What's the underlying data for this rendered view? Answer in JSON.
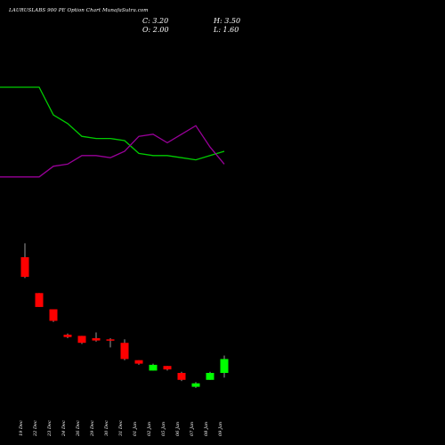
{
  "chart_data": {
    "type": "candlestick",
    "title": "LAURUSLABS 900 PE Option Chart MunafaSutra.com",
    "ohlc_summary": {
      "C": "3.20",
      "O": "2.00",
      "H": "3.50",
      "L": "1.60"
    },
    "header_text": {
      "c": "C: 3.20",
      "o": "O: 2.00",
      "h": "H: 3.50",
      "l": "L: 1.60"
    },
    "categories": [
      "19 Dec",
      "22 Dec",
      "23 Dec",
      "24 Dec",
      "26 Dec",
      "29 Dec",
      "30 Dec",
      "31 Dec",
      "01 Jan",
      "02 Jan",
      "05 Jan",
      "06 Jan",
      "07 Jan",
      "08 Jan",
      "09 Jan"
    ],
    "candles": [
      {
        "x": "19 Dec",
        "open": 12.0,
        "high": 13.2,
        "low": 10.2,
        "close": 10.3
      },
      {
        "x": "22 Dec",
        "open": 8.9,
        "high": 8.9,
        "low": 7.7,
        "close": 7.7
      },
      {
        "x": "23 Dec",
        "open": 7.5,
        "high": 7.5,
        "low": 6.4,
        "close": 6.5
      },
      {
        "x": "24 Dec",
        "open": 5.3,
        "high": 5.4,
        "low": 5.0,
        "close": 5.1
      },
      {
        "x": "26 Dec",
        "open": 5.2,
        "high": 5.2,
        "low": 4.5,
        "close": 4.6
      },
      {
        "x": "29 Dec",
        "open": 5.0,
        "high": 5.5,
        "low": 4.7,
        "close": 4.8
      },
      {
        "x": "30 Dec",
        "open": 4.9,
        "high": 5.0,
        "low": 4.2,
        "close": 4.8
      },
      {
        "x": "31 Dec",
        "open": 4.6,
        "high": 4.9,
        "low": 3.1,
        "close": 3.2
      },
      {
        "x": "01 Jan",
        "open": 3.1,
        "high": 3.1,
        "low": 2.7,
        "close": 2.8
      },
      {
        "x": "02 Jan",
        "open": 2.2,
        "high": 2.8,
        "low": 2.2,
        "close": 2.7
      },
      {
        "x": "05 Jan",
        "open": 2.6,
        "high": 2.6,
        "low": 2.2,
        "close": 2.3
      },
      {
        "x": "06 Jan",
        "open": 2.0,
        "high": 2.1,
        "low": 1.3,
        "close": 1.4
      },
      {
        "x": "07 Jan",
        "open": 0.8,
        "high": 1.2,
        "low": 0.7,
        "close": 1.1
      },
      {
        "x": "08 Jan",
        "open": 1.4,
        "high": 2.1,
        "low": 1.4,
        "close": 2.0
      },
      {
        "x": "09 Jan",
        "open": 2.0,
        "high": 3.5,
        "low": 1.6,
        "close": 3.2
      }
    ],
    "series": [
      {
        "values": [
          8.0,
          8.0,
          6.7,
          6.3,
          5.7,
          5.6,
          5.6,
          5.5,
          4.9,
          4.8,
          4.8,
          4.7,
          4.6,
          4.8,
          5.0
        ]
      },
      {
        "values": [
          3.8,
          3.8,
          4.3,
          4.4,
          4.8,
          4.8,
          4.7,
          5.0,
          5.7,
          5.8,
          5.4,
          5.8,
          6.2,
          5.2,
          4.4
        ]
      }
    ],
    "colors": {
      "background": "#000000",
      "up": "#00ff00",
      "down": "#ff0000",
      "wick": "#ffffff",
      "green_line": "#00cc00",
      "purple_line": "#990099",
      "text": "#ffffff"
    },
    "grid": false,
    "legend": "none"
  }
}
